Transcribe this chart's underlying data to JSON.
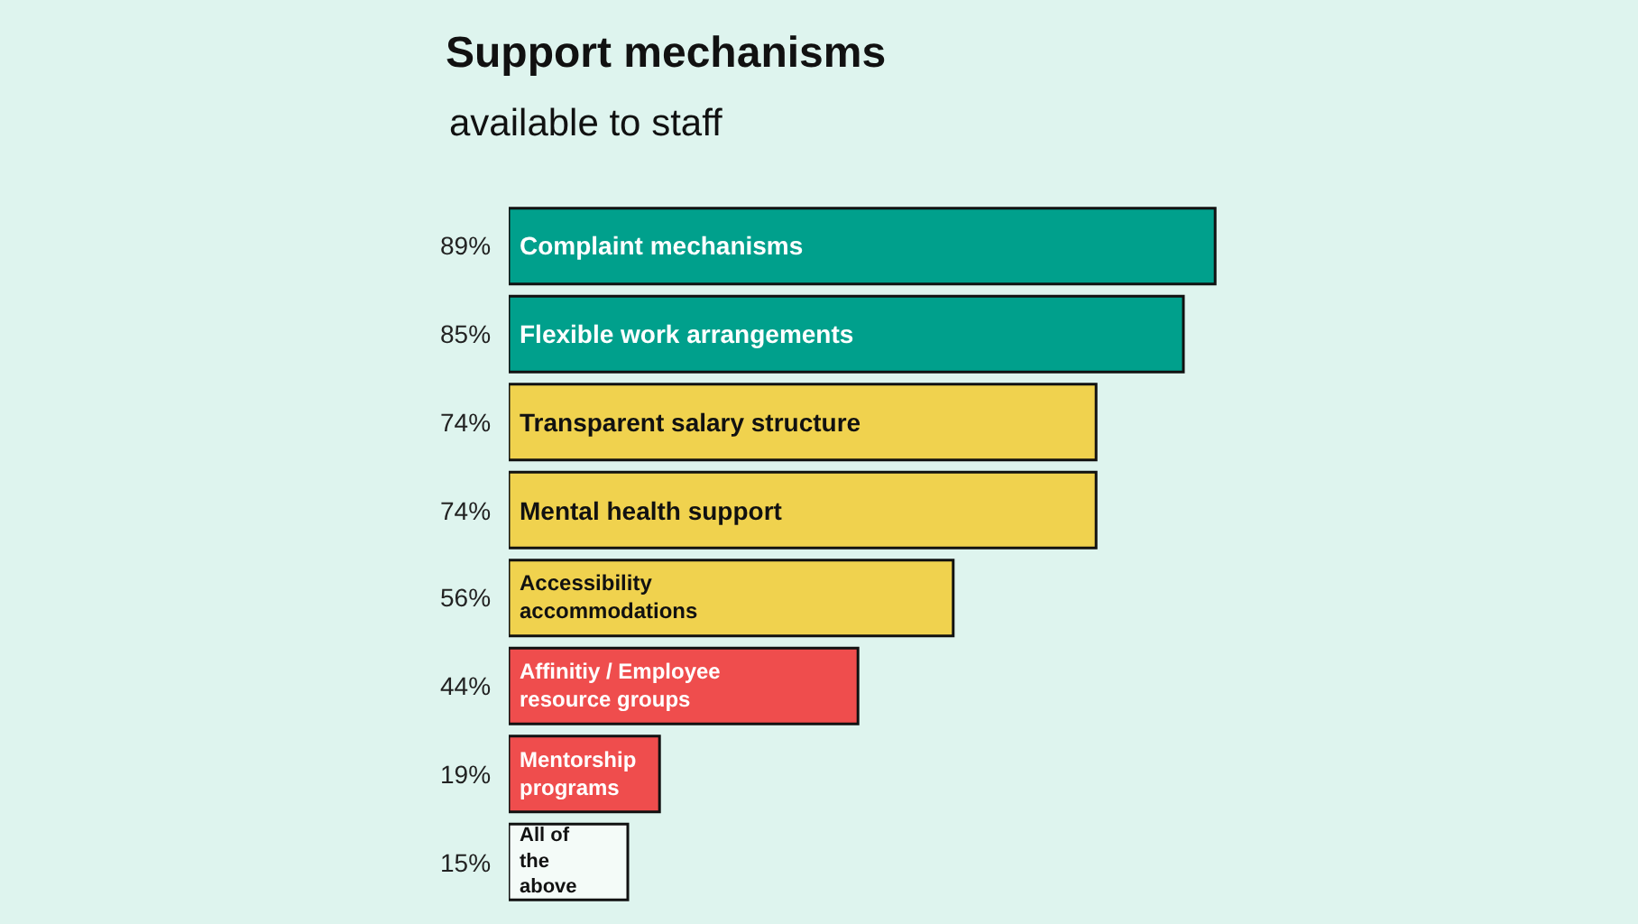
{
  "chart_data": {
    "type": "bar",
    "orientation": "horizontal",
    "title": "Support mechanisms",
    "subtitle": "available to staff",
    "categories": [
      "Complaint mechanisms",
      "Flexible work arrangements",
      "Transparent salary structure",
      "Mental health support",
      "Accessibility accommodations",
      "Affinitiy / Employee resource groups",
      "Mentorship programs",
      "All of the above"
    ],
    "values": [
      89,
      85,
      74,
      74,
      56,
      44,
      19,
      15
    ],
    "value_labels": [
      "89%",
      "85%",
      "74%",
      "74%",
      "56%",
      "44%",
      "19%",
      "15%"
    ],
    "colors": [
      "#00a08c",
      "#00a08c",
      "#f0d24e",
      "#f0d24e",
      "#f0d24e",
      "#ef4d4d",
      "#ef4d4d",
      "#f4fbf8"
    ],
    "grid": false,
    "legend": false
  }
}
